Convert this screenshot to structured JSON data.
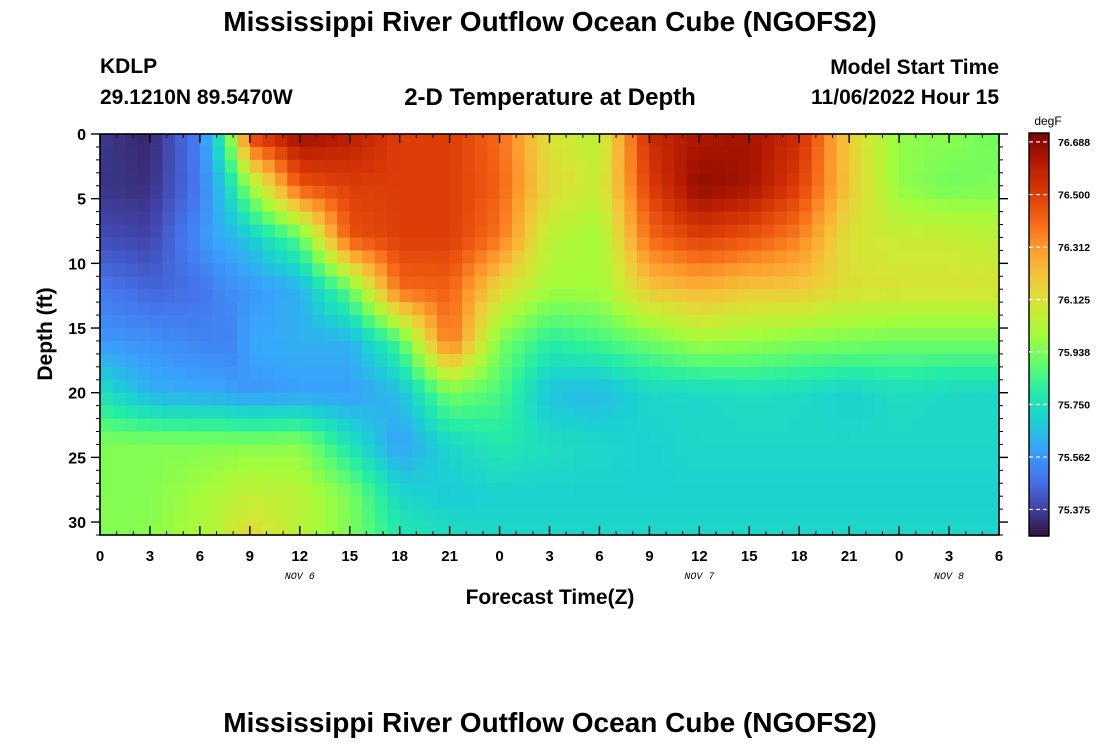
{
  "header": {
    "title": "Mississippi River Outflow Ocean Cube (NGOFS2)",
    "station_id": "KDLP",
    "station_coords": "29.1210N  89.5470W",
    "subtitle": "2-D Temperature at Depth",
    "model_start_label": "Model Start Time",
    "model_start_value": "11/06/2022 Hour 15"
  },
  "footer": {
    "title": "Mississippi River Outflow Ocean Cube (NGOFS2)"
  },
  "colors": {
    "colormap": [
      "#30123b",
      "#4145ab",
      "#4675ed",
      "#39a2fc",
      "#1bcfd4",
      "#24eca6",
      "#61fc6c",
      "#a4fc3b",
      "#d1e834",
      "#f3c63a",
      "#fe9b2d",
      "#f36315",
      "#d93806",
      "#b11901",
      "#7a0402"
    ]
  },
  "chart_data": {
    "type": "heatmap",
    "xlabel": "Forecast Time(Z)",
    "ylabel": "Depth (ft)",
    "x_hours_range": [
      0,
      54
    ],
    "x_tick_labels": [
      "0",
      "3",
      "6",
      "9",
      "12",
      "15",
      "18",
      "21",
      "0",
      "3",
      "6",
      "9",
      "12",
      "15",
      "18",
      "21",
      "0",
      "3",
      "6"
    ],
    "date_labels": [
      {
        "text": "NOV 6",
        "at_hour": 12
      },
      {
        "text": "NOV 7",
        "at_hour": 36
      },
      {
        "text": "NOV 8",
        "at_hour": 51
      }
    ],
    "ylim": [
      0,
      31
    ],
    "y_ticks": [
      0,
      5,
      10,
      15,
      20,
      25,
      30
    ],
    "colorbar": {
      "unit": "degF",
      "min": 75.28,
      "max": 76.72,
      "tick_values": [
        76.688,
        76.5,
        76.312,
        76.125,
        75.938,
        75.75,
        75.562,
        75.375
      ],
      "tick_labels": [
        "76.688",
        "76.500",
        "76.312",
        "76.125",
        "75.938",
        "75.750",
        "75.562",
        "75.375"
      ]
    },
    "temperature_field": {
      "depths_ft": [
        0,
        4,
        8,
        12,
        16,
        20,
        24,
        28,
        31
      ],
      "hours": [
        0,
        3,
        6,
        7,
        8,
        9,
        12,
        15,
        18,
        21,
        24,
        27,
        30,
        33,
        36,
        39,
        42,
        45,
        48,
        51,
        54
      ],
      "degF": [
        [
          75.36,
          75.32,
          75.52,
          75.72,
          76.02,
          76.5,
          76.66,
          76.6,
          76.5,
          76.5,
          76.4,
          76.12,
          76.05,
          76.56,
          76.62,
          76.64,
          76.55,
          76.18,
          75.97,
          75.96,
          75.92
        ],
        [
          75.35,
          75.34,
          75.5,
          75.62,
          75.78,
          75.98,
          76.45,
          76.5,
          76.5,
          76.5,
          76.42,
          76.15,
          76.08,
          76.5,
          76.68,
          76.64,
          76.5,
          76.2,
          75.97,
          75.92,
          75.94
        ],
        [
          75.4,
          75.38,
          75.55,
          75.6,
          75.63,
          75.68,
          75.88,
          76.45,
          76.5,
          76.5,
          76.38,
          76.05,
          76.0,
          76.4,
          76.5,
          76.45,
          76.36,
          76.12,
          76.08,
          76.08,
          76.05
        ],
        [
          75.5,
          75.45,
          75.48,
          75.52,
          75.54,
          75.56,
          75.62,
          75.9,
          76.4,
          76.42,
          76.15,
          76.0,
          76.0,
          76.2,
          76.25,
          76.2,
          76.2,
          76.13,
          76.12,
          76.12,
          76.12
        ],
        [
          75.56,
          75.55,
          75.52,
          75.52,
          75.52,
          75.6,
          75.62,
          75.62,
          75.86,
          76.4,
          75.94,
          75.8,
          75.85,
          75.92,
          76.0,
          75.98,
          75.95,
          75.94,
          75.92,
          75.92,
          75.92
        ],
        [
          75.75,
          75.62,
          75.6,
          75.6,
          75.58,
          75.56,
          75.58,
          75.58,
          75.65,
          75.93,
          75.86,
          75.66,
          75.64,
          75.72,
          75.72,
          75.74,
          75.73,
          75.7,
          75.74,
          75.72,
          75.72
        ],
        [
          75.95,
          75.95,
          75.95,
          75.95,
          75.95,
          75.95,
          75.96,
          75.76,
          75.58,
          75.72,
          75.78,
          75.74,
          75.72,
          75.7,
          75.72,
          75.72,
          75.72,
          75.72,
          75.72,
          75.72,
          75.72
        ],
        [
          75.95,
          75.95,
          76.0,
          76.02,
          76.05,
          76.07,
          76.05,
          75.94,
          75.72,
          75.68,
          75.7,
          75.7,
          75.7,
          75.7,
          75.7,
          75.7,
          75.7,
          75.7,
          75.7,
          75.7,
          75.7
        ],
        [
          75.95,
          75.96,
          76.02,
          76.05,
          76.1,
          76.15,
          76.05,
          75.94,
          75.78,
          75.74,
          75.72,
          75.72,
          75.72,
          75.72,
          75.72,
          75.72,
          75.72,
          75.72,
          75.72,
          75.72,
          75.72
        ]
      ]
    }
  }
}
